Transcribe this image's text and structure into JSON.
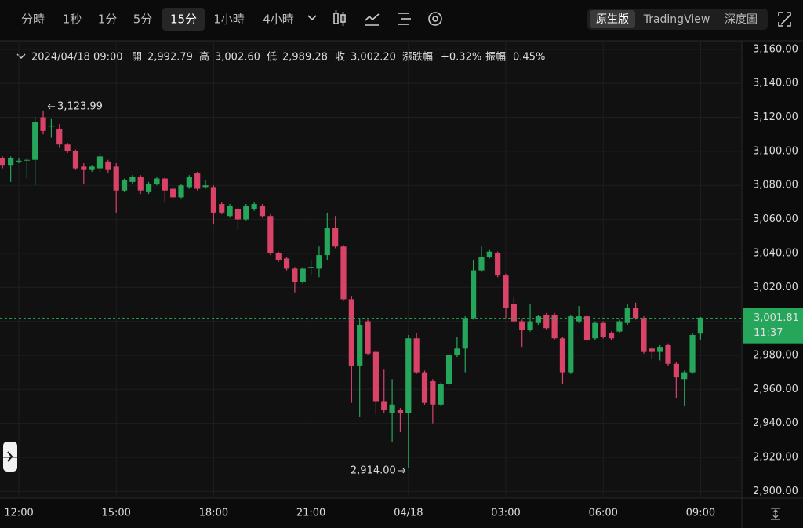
{
  "toolbar": {
    "intervals": [
      "分時",
      "1秒",
      "1分",
      "5分",
      "15分",
      "1小時",
      "4小時"
    ],
    "selected_interval": 4,
    "views": [
      "原生版",
      "TradingView",
      "深度圖"
    ],
    "selected_view": 0
  },
  "legend": {
    "date": "2024/04/18 09:00",
    "items": [
      {
        "label": "開",
        "value": "2,992.79"
      },
      {
        "label": "高",
        "value": "3,002.60"
      },
      {
        "label": "低",
        "value": "2,989.28"
      },
      {
        "label": "收",
        "value": "3,002.20"
      },
      {
        "label": "漲跌幅",
        "value": "+0.32%"
      },
      {
        "label": "振幅",
        "value": "0.45%"
      }
    ]
  },
  "chart_data": {
    "type": "candlestick",
    "up_color": "#26a65b",
    "down_color": "#d94368",
    "grid": true,
    "categories": [
      null,
      null,
      "12:00",
      null,
      null,
      null,
      null,
      null,
      null,
      null,
      null,
      null,
      null,
      null,
      "15:00",
      null,
      null,
      null,
      null,
      null,
      null,
      null,
      null,
      null,
      null,
      null,
      "18:00",
      null,
      null,
      null,
      null,
      null,
      null,
      null,
      null,
      null,
      null,
      null,
      "21:00",
      null,
      null,
      null,
      null,
      null,
      null,
      null,
      null,
      null,
      null,
      null,
      "04/18",
      null,
      null,
      null,
      null,
      null,
      null,
      null,
      null,
      null,
      null,
      null,
      "03:00",
      null,
      null,
      null,
      null,
      null,
      null,
      null,
      null,
      null,
      null,
      null,
      "06:00",
      null,
      null,
      null,
      null,
      null,
      null,
      null,
      null,
      null,
      null,
      null,
      "09:00"
    ],
    "open": [
      3096,
      3092,
      3094,
      3095,
      3095,
      3120,
      3115,
      3113,
      3104,
      3100,
      3091,
      3089,
      3090,
      3094,
      3091,
      3077,
      3082,
      3085,
      3076,
      3081,
      3084,
      3078,
      3073,
      3079,
      3087,
      3079,
      3079,
      3069,
      3062,
      3066,
      3060,
      3066,
      3068,
      3062,
      3040,
      3037,
      3031,
      3023,
      3032,
      3031,
      3039,
      3055,
      3044,
      3013,
      2974,
      3000,
      2982,
      2953,
      2946,
      2948,
      2946,
      2990,
      2970,
      2965,
      2951,
      2963,
      2980,
      2984,
      3002,
      3030,
      3038,
      3040,
      3027,
      3010,
      3000,
      2995,
      2999,
      3004,
      3004,
      2990,
      2970,
      3000,
      3003,
      2990,
      2999,
      2993,
      2994,
      2999,
      3008,
      3002,
      2984,
      2982,
      2986,
      2975,
      2966,
      2970,
      2992.79
    ],
    "high": [
      3097,
      3097,
      3096,
      3096,
      3120,
      3123.99,
      3119,
      3116,
      3105,
      3101,
      3093,
      3092,
      3099,
      3095,
      3093,
      3084,
      3086,
      3086,
      3082,
      3085,
      3085,
      3079,
      3081,
      3086,
      3088,
      3083,
      3080,
      3070,
      3069,
      3067,
      3069,
      3070,
      3069,
      3063,
      3041,
      3038,
      3032,
      3032,
      3036,
      3044,
      3064,
      3062,
      3045,
      3015,
      3002,
      3001,
      2983,
      2972,
      2966,
      2949,
      2992,
      2993,
      2971,
      2966,
      2964,
      2981,
      2991,
      3003,
      3036,
      3044,
      3042,
      3041,
      3028,
      3014,
      3001,
      3010,
      3004,
      3005,
      3005,
      2991,
      3004,
      3009,
      3004,
      3000,
      3000,
      2994,
      3001,
      3010,
      3011,
      3003,
      2985,
      2986,
      2987,
      2976,
      2971,
      2993,
      3002.6
    ],
    "low": [
      3090,
      3082,
      3093,
      3084,
      3080,
      3110,
      3108,
      3102,
      3099,
      3089,
      3081,
      3088,
      3088,
      3087,
      3064,
      3076,
      3081,
      3075,
      3075,
      3080,
      3070,
      3072,
      3072,
      3078,
      3077,
      3078,
      3057,
      3063,
      3061,
      3054,
      3059,
      3065,
      3061,
      3039,
      3035,
      3030,
      3017,
      3022,
      3027,
      3026,
      3036,
      3043,
      3012,
      2952,
      2944,
      2980,
      2945,
      2946,
      2929,
      2935,
      2914,
      2969,
      2951,
      2940,
      2950,
      2962,
      2979,
      2970,
      3001,
      3029,
      3037,
      3026,
      3002,
      2999,
      2985,
      2994,
      2998,
      2995,
      2989,
      2963,
      2969,
      2999,
      2988,
      2989,
      2990,
      2989,
      2993,
      2998,
      3001,
      2981,
      2978,
      2977,
      2974,
      2955,
      2950,
      2969,
      2989.28
    ],
    "close": [
      3092,
      3096,
      3094.5,
      3095,
      3117,
      3112,
      3115,
      3104,
      3100,
      3090,
      3089,
      3091,
      3097,
      3089,
      3077,
      3083,
      3085,
      3077,
      3081,
      3084,
      3077,
      3073,
      3080,
      3085,
      3078,
      3080,
      3064,
      3064,
      3068,
      3060,
      3068,
      3069,
      3062,
      3040,
      3036,
      3031,
      3023,
      3031,
      3032,
      3039,
      3055,
      3044,
      3013,
      2974,
      2998,
      2981,
      2953,
      2948,
      2951,
      2946,
      2990,
      2970,
      2952,
      2951,
      2963,
      2980,
      2984,
      3002,
      3030,
      3038,
      3041,
      3027,
      3008,
      3000,
      2995,
      3000,
      3003,
      2996,
      2990,
      2970,
      3003,
      3003,
      2989,
      2999,
      2991,
      2990,
      3000,
      3008,
      3002,
      2982,
      2982,
      2985,
      2975,
      2967,
      2970,
      2992,
      3002.2
    ],
    "ylim": [
      2896,
      3165
    ],
    "yticks": [
      {
        "value": 2900,
        "label": "2,900.00"
      },
      {
        "value": 2920,
        "label": "2,920.00"
      },
      {
        "value": 2940,
        "label": "2,940.00"
      },
      {
        "value": 2960,
        "label": "2,960.00"
      },
      {
        "value": 2980,
        "label": "2,980.00"
      },
      {
        "value": 3000,
        "label": "3,000.00"
      },
      {
        "value": 3020,
        "label": "3,020.00"
      },
      {
        "value": 3040,
        "label": "3,040.00"
      },
      {
        "value": 3060,
        "label": "3,060.00"
      },
      {
        "value": 3080,
        "label": "3,080.00"
      },
      {
        "value": 3100,
        "label": "3,100.00"
      },
      {
        "value": 3120,
        "label": "3,120.00"
      },
      {
        "value": 3140,
        "label": "3,140.00"
      },
      {
        "value": 3160,
        "label": "3,160.00"
      }
    ],
    "last_price": {
      "value": 3001.81,
      "label": "3,001.81"
    },
    "countdown": "11:37",
    "annotations": [
      {
        "index": 5,
        "value": 3123.99,
        "label": "3,123.99",
        "side": "right"
      },
      {
        "index": 50,
        "value": 2914,
        "label": "2,914.00",
        "side": "left"
      }
    ]
  }
}
